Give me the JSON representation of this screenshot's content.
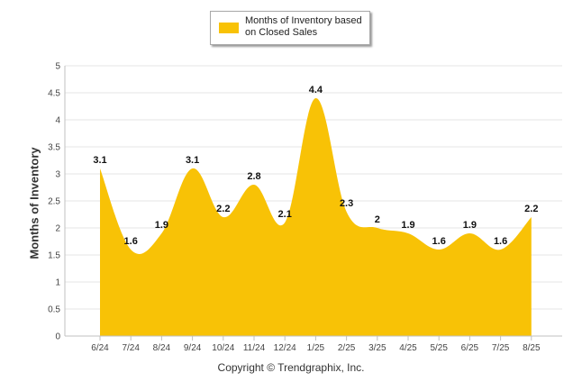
{
  "chart_data": {
    "type": "area",
    "legend": {
      "label": "Months of Inventory based on Closed Sales",
      "placement": "top-center"
    },
    "ylabel": "Months of Inventory",
    "xlabel": "",
    "ylim": [
      0,
      5
    ],
    "yticks": [
      "0",
      "0.5",
      "1",
      "1.5",
      "2",
      "2.5",
      "3",
      "3.5",
      "4",
      "4.5",
      "5"
    ],
    "grid": true,
    "categories": [
      "6/24",
      "7/24",
      "8/24",
      "9/24",
      "10/24",
      "11/24",
      "12/24",
      "1/25",
      "2/25",
      "3/25",
      "4/25",
      "5/25",
      "6/25",
      "7/25",
      "8/25"
    ],
    "series": [
      {
        "name": "Months of Inventory based on Closed Sales",
        "values": [
          3.1,
          1.6,
          1.9,
          3.1,
          2.2,
          2.8,
          2.1,
          4.4,
          2.3,
          2,
          1.9,
          1.6,
          1.9,
          1.6,
          2.2
        ],
        "labels": [
          "3.1",
          "1.6",
          "1.9",
          "3.1",
          "2.2",
          "2.8",
          "2.1",
          "4.4",
          "2.3",
          "2",
          "1.9",
          "1.6",
          "1.9",
          "1.6",
          "2.2"
        ]
      }
    ],
    "colors": {
      "area": "#f8c206",
      "grid": "#e6e6e6",
      "axis": "#c0c0c0"
    }
  },
  "footer": {
    "copyright": "Copyright © Trendgraphix, Inc."
  }
}
